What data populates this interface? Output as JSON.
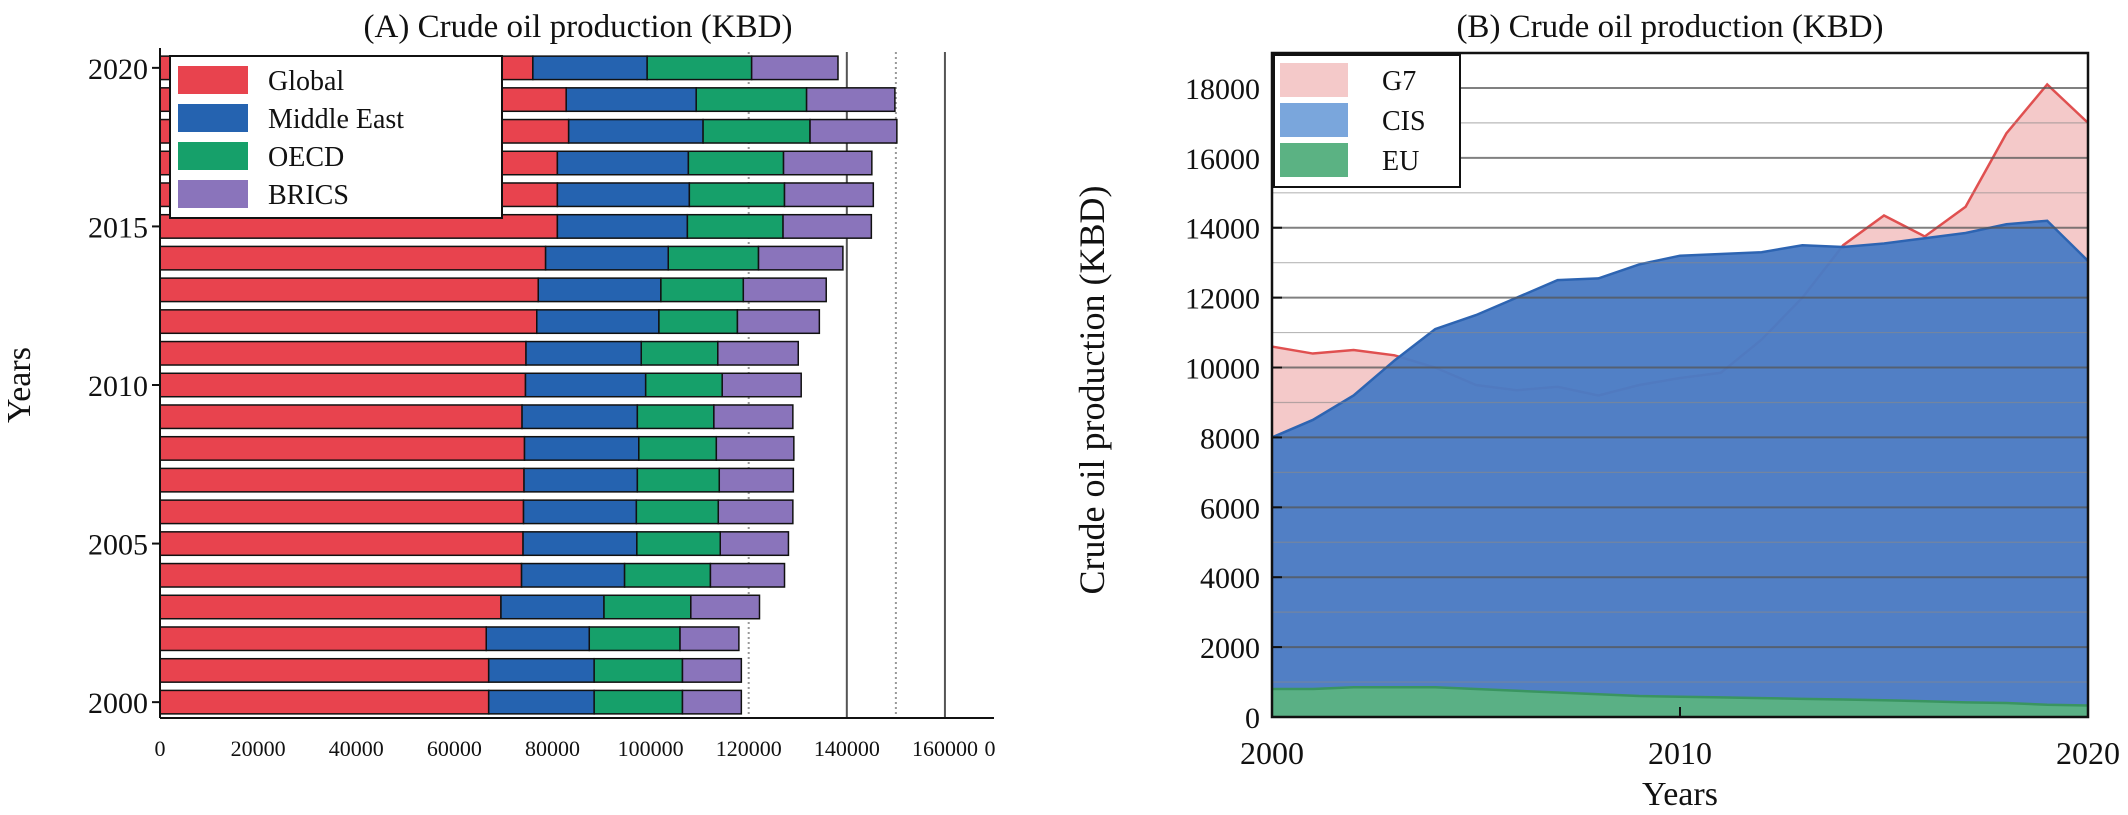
{
  "chart_data": [
    {
      "type": "bar",
      "orientation": "horizontal",
      "stacked": true,
      "title": "(A) Crude oil production (KBD)",
      "ylabel": "Years",
      "xlabel": "",
      "y_categories": [
        2000,
        2001,
        2002,
        2003,
        2004,
        2005,
        2006,
        2007,
        2008,
        2009,
        2010,
        2011,
        2012,
        2013,
        2014,
        2015,
        2016,
        2017,
        2018,
        2019,
        2020
      ],
      "y_ticks": [
        "2000",
        "2005",
        "2010",
        "2015",
        "2020"
      ],
      "x_ticks": [
        "0",
        "20000",
        "40000",
        "60000",
        "80000",
        "100000",
        "120000",
        "140000",
        "160000"
      ],
      "x_trailing_label": "0",
      "xlim": [
        0,
        170000
      ],
      "grid": "vertical lines at 140000, 160000 (solid) and 120000, 150000 (dotted)",
      "legend_position": "top-left",
      "series": [
        {
          "name": "Global",
          "color": "#e8434e",
          "values": [
            67000,
            67000,
            66500,
            69500,
            73700,
            74000,
            74100,
            74200,
            74300,
            73800,
            74500,
            74600,
            76800,
            77100,
            78600,
            81000,
            81000,
            81000,
            83300,
            82800,
            76000
          ]
        },
        {
          "name": "Middle East",
          "color": "#2563b0",
          "values": [
            21500,
            21500,
            21000,
            21000,
            21000,
            23200,
            23000,
            23100,
            23300,
            23500,
            24500,
            23500,
            24900,
            25000,
            25000,
            26500,
            26900,
            26700,
            27400,
            26500,
            23300
          ]
        },
        {
          "name": "OECD",
          "color": "#16a06a",
          "values": [
            18000,
            18000,
            18500,
            17700,
            17500,
            17000,
            16700,
            16700,
            15800,
            15600,
            15600,
            15600,
            16000,
            16800,
            18400,
            19500,
            19400,
            19400,
            21800,
            22500,
            21300
          ]
        },
        {
          "name": "BRICS",
          "color": "#8a74bb",
          "values": [
            12000,
            12000,
            12000,
            14000,
            15100,
            13900,
            15200,
            15100,
            15800,
            16100,
            16100,
            16400,
            16700,
            16900,
            17200,
            18000,
            18100,
            18000,
            17700,
            18000,
            17600
          ]
        }
      ]
    },
    {
      "type": "area",
      "title": "(B) Crude oil production (KBD)",
      "xlabel": "Years",
      "ylabel": "Crude oil production (KBD)",
      "xlim": [
        2000,
        2020
      ],
      "ylim": [
        0,
        19000
      ],
      "x_ticks": [
        "2000",
        "2010",
        "2020"
      ],
      "y_ticks": [
        "0",
        "2000",
        "4000",
        "6000",
        "8000",
        "10000",
        "12000",
        "14000",
        "16000",
        "18000"
      ],
      "grid": "horizontal lines",
      "legend_position": "top-left",
      "x": [
        2000,
        2001,
        2002,
        2003,
        2004,
        2005,
        2006,
        2007,
        2008,
        2009,
        2010,
        2011,
        2012,
        2013,
        2014,
        2015,
        2016,
        2017,
        2018,
        2019,
        2020
      ],
      "series": [
        {
          "name": "G7",
          "color": "#f4c9c9",
          "line_color": "#e05050",
          "values": [
            10600,
            10400,
            10500,
            10350,
            10000,
            9500,
            9350,
            9450,
            9200,
            9500,
            9700,
            9850,
            10800,
            12000,
            13500,
            14350,
            13750,
            14600,
            16700,
            18100,
            17000
          ]
        },
        {
          "name": "CIS",
          "color": "#4b7cc4",
          "line_color": "#2d64b2",
          "values": [
            8000,
            8500,
            9200,
            10200,
            11100,
            11500,
            12000,
            12500,
            12550,
            12950,
            13200,
            13250,
            13300,
            13500,
            13450,
            13550,
            13700,
            13850,
            14100,
            14200,
            13050
          ]
        },
        {
          "name": "EU",
          "color": "#5bb283",
          "line_color": "#3a9560",
          "values": [
            800,
            800,
            850,
            850,
            850,
            800,
            750,
            700,
            650,
            600,
            580,
            560,
            540,
            520,
            500,
            480,
            450,
            420,
            400,
            350,
            330
          ]
        }
      ]
    }
  ]
}
